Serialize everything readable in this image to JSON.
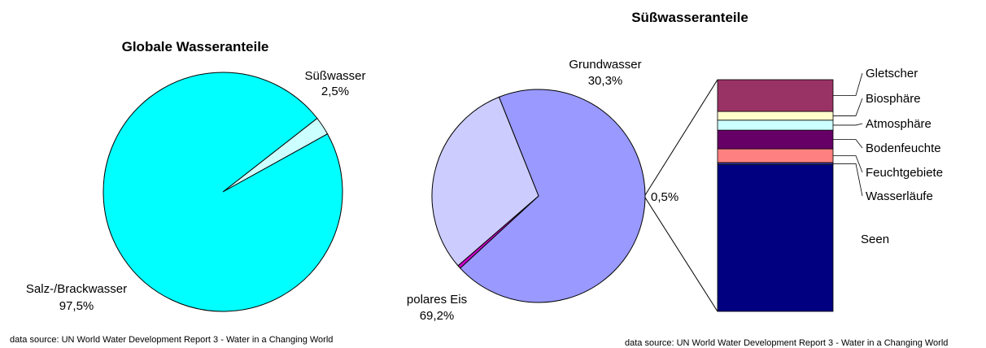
{
  "chart_data": [
    {
      "type": "pie",
      "title": "Globale Wasseranteile",
      "slices": [
        {
          "label": "Salz-/Brackwasser",
          "value": 97.5,
          "value_text": "97,5%",
          "color": "#00ffff"
        },
        {
          "label": "Süßwasser",
          "value": 2.5,
          "value_text": "2,5%",
          "color": "#ccffff"
        }
      ],
      "source": "data source: UN World Water Development Report 3 - Water in a Changing World"
    },
    {
      "type": "pie",
      "title": "Süßwasseranteile",
      "slices": [
        {
          "label": "polares Eis",
          "value": 69.2,
          "value_text": "69,2%",
          "color": "#9999ff"
        },
        {
          "label": "Grundwasser",
          "value": 30.3,
          "value_text": "30,3%",
          "color": "#ccccff"
        },
        {
          "label": "",
          "value": 0.5,
          "value_text": "0,5%",
          "color": "#cc00cc"
        }
      ],
      "breakdown": {
        "type": "bar",
        "stacked": true,
        "note": "stacked breakdown of the 0,5% slice (values estimated from segment heights)",
        "segments": [
          {
            "label": "Seen",
            "value": 67.4,
            "color": "#000080"
          },
          {
            "label": "Wasserläufe",
            "value": 1.0,
            "color": "#333399"
          },
          {
            "label": "Feuchtgebiete",
            "value": 6.3,
            "color": "#ff8080"
          },
          {
            "label": "Bodenfeuchte",
            "value": 8.6,
            "color": "#660066"
          },
          {
            "label": "Atmosphäre",
            "value": 4.6,
            "color": "#ccffff"
          },
          {
            "label": "Biosphäre",
            "value": 4.0,
            "color": "#ffffcc"
          },
          {
            "label": "Gletscher",
            "value": 14.6,
            "color": "#993366"
          }
        ]
      },
      "source": "data source: UN World Water Development Report 3 - Water in a Changing World"
    }
  ]
}
